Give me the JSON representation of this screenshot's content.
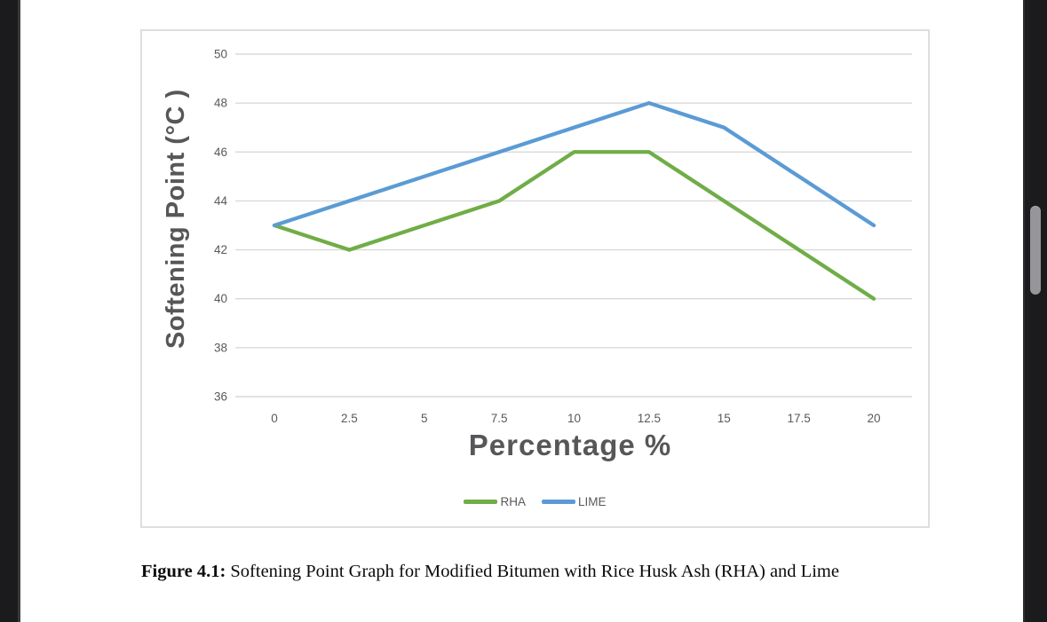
{
  "caption": {
    "label": "Figure 4.1:",
    "text": "Softening Point Graph for Modified Bitumen with Rice Husk Ash (RHA) and Lime"
  },
  "chart_data": {
    "type": "line",
    "title": "",
    "xlabel": "Percentage %",
    "ylabel": "Softening Point (°C )",
    "x": [
      0,
      2.5,
      5,
      7.5,
      10,
      12.5,
      15,
      17.5,
      20
    ],
    "xtick_labels": [
      "0",
      "2.5",
      "5",
      "7.5",
      "10",
      "12.5",
      "15",
      "17.5",
      "20"
    ],
    "yticks": [
      36,
      38,
      40,
      42,
      44,
      46,
      48,
      50
    ],
    "ylim": [
      36,
      50
    ],
    "grid": true,
    "legend_position": "bottom",
    "series": [
      {
        "name": "RHA",
        "color": "#70AD47",
        "values": [
          43,
          42,
          43,
          44,
          46,
          46,
          44,
          42,
          40
        ]
      },
      {
        "name": "LIME",
        "color": "#5B9BD5",
        "values": [
          43,
          44,
          45,
          46,
          47,
          48,
          47,
          45,
          43
        ]
      }
    ],
    "colors": {
      "axis_text": "#595959",
      "gridline": "#d9d9d9"
    }
  }
}
